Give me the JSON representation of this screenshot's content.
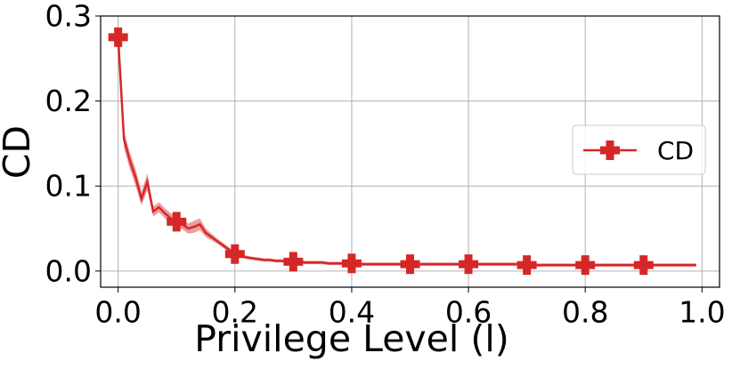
{
  "chart_data": {
    "type": "line",
    "xlabel": "Privilege Level (l)",
    "ylabel": "CD",
    "xlim": [
      -0.03,
      1.03
    ],
    "ylim": [
      -0.019,
      0.3
    ],
    "xticks": [
      {
        "value": 0,
        "label": "0.0"
      },
      0.2,
      0.4,
      0.6,
      0.8,
      {
        "value": 1,
        "label": "1.0"
      }
    ],
    "yticks": [
      {
        "value": 0,
        "label": "0.0"
      },
      0.1,
      0.2,
      0.3
    ],
    "grid": true,
    "legend": "right",
    "markevery": 10,
    "series": [
      {
        "name": "CD",
        "color": "#d62728",
        "x": [
          0,
          0.01,
          0.02,
          0.03,
          0.04,
          0.05,
          0.06,
          0.07,
          0.08,
          0.09,
          0.1,
          0.11,
          0.12,
          0.13,
          0.14,
          0.15,
          0.16,
          0.17,
          0.18,
          0.19,
          0.2,
          0.21,
          0.22,
          0.23,
          0.24,
          0.25,
          0.26,
          0.27,
          0.28,
          0.29,
          0.3,
          0.31,
          0.32,
          0.33,
          0.34,
          0.35,
          0.36,
          0.37,
          0.38,
          0.39,
          0.4,
          0.41,
          0.42,
          0.43,
          0.44,
          0.45,
          0.46,
          0.47,
          0.48,
          0.49,
          0.5,
          0.51,
          0.52,
          0.53,
          0.54,
          0.55,
          0.56,
          0.57,
          0.58,
          0.59,
          0.6,
          0.61,
          0.62,
          0.63,
          0.64,
          0.65,
          0.66,
          0.67,
          0.68,
          0.69,
          0.7,
          0.71,
          0.72,
          0.73,
          0.74,
          0.75,
          0.76,
          0.77,
          0.78,
          0.79,
          0.8,
          0.81,
          0.82,
          0.83,
          0.84,
          0.85,
          0.86,
          0.87,
          0.88,
          0.89,
          0.9,
          0.91,
          0.92,
          0.93,
          0.94,
          0.95,
          0.96,
          0.97,
          0.98,
          0.99
        ],
        "values": [
          0.275,
          0.155,
          0.13,
          0.11,
          0.085,
          0.105,
          0.07,
          0.075,
          0.068,
          0.062,
          0.058,
          0.055,
          0.05,
          0.052,
          0.055,
          0.045,
          0.04,
          0.035,
          0.03,
          0.025,
          0.02,
          0.018,
          0.016,
          0.015,
          0.014,
          0.013,
          0.013,
          0.012,
          0.012,
          0.011,
          0.011,
          0.011,
          0.01,
          0.01,
          0.01,
          0.01,
          0.009,
          0.009,
          0.009,
          0.009,
          0.009,
          0.008,
          0.008,
          0.008,
          0.008,
          0.008,
          0.008,
          0.008,
          0.008,
          0.008,
          0.008,
          0.008,
          0.008,
          0.008,
          0.008,
          0.008,
          0.008,
          0.008,
          0.008,
          0.008,
          0.008,
          0.008,
          0.008,
          0.008,
          0.008,
          0.008,
          0.008,
          0.008,
          0.008,
          0.008,
          0.007,
          0.007,
          0.007,
          0.007,
          0.007,
          0.007,
          0.007,
          0.007,
          0.007,
          0.007,
          0.007,
          0.007,
          0.007,
          0.007,
          0.007,
          0.007,
          0.007,
          0.007,
          0.007,
          0.007,
          0.007,
          0.007,
          0.007,
          0.007,
          0.007,
          0.007,
          0.007,
          0.007,
          0.007,
          0.007
        ],
        "errors": [
          0.005,
          0.01,
          0.01,
          0.01,
          0.008,
          0.01,
          0.006,
          0.006,
          0.006,
          0.006,
          0.006,
          0.006,
          0.006,
          0.007,
          0.007,
          0.005,
          0.004,
          0.003,
          0.003,
          0.003,
          0.003,
          0.002,
          0.002,
          0.002,
          0.002,
          0.002,
          0.002,
          0.002,
          0.002,
          0.002,
          0.002,
          0.002,
          0.002,
          0.002,
          0.002,
          0.002,
          0.002,
          0.002,
          0.002,
          0.002,
          0.002,
          0.002,
          0.002,
          0.002,
          0.002,
          0.002,
          0.002,
          0.002,
          0.002,
          0.002,
          0.002,
          0.002,
          0.002,
          0.002,
          0.002,
          0.002,
          0.002,
          0.002,
          0.002,
          0.002,
          0.002,
          0.002,
          0.002,
          0.002,
          0.002,
          0.002,
          0.002,
          0.002,
          0.002,
          0.002,
          0.002,
          0.002,
          0.002,
          0.002,
          0.002,
          0.002,
          0.002,
          0.002,
          0.002,
          0.002,
          0.002,
          0.002,
          0.002,
          0.002,
          0.002,
          0.002,
          0.002,
          0.002,
          0.002,
          0.002,
          0.002,
          0.002,
          0.002,
          0.002,
          0.002,
          0.002,
          0.002,
          0.002,
          0.002,
          0.002
        ]
      }
    ]
  }
}
